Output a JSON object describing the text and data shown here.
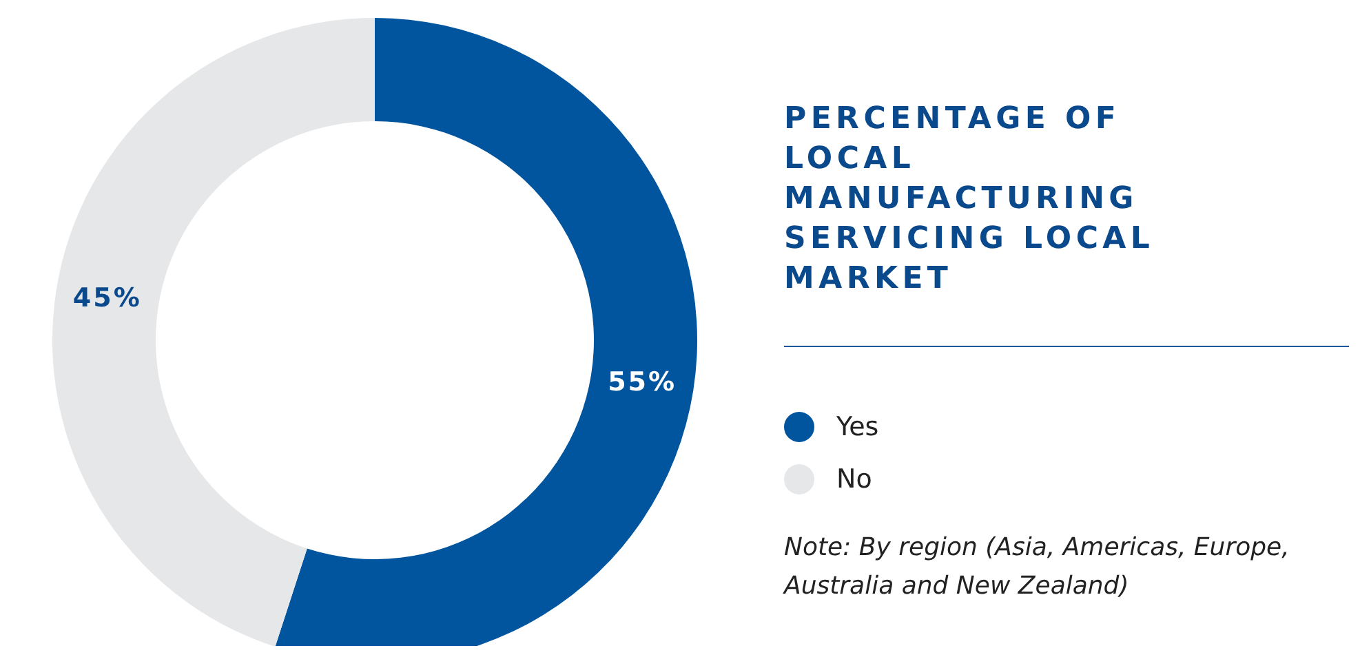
{
  "chart_data": {
    "type": "donut",
    "title": "PERCENTAGE OF LOCAL MANUFACTURING SERVICING LOCAL MARKET",
    "categories": [
      "Yes",
      "No"
    ],
    "values": [
      55,
      45
    ],
    "colors": [
      "#00559e",
      "#e6e7e9"
    ],
    "value_labels": [
      "55%",
      "45%"
    ],
    "legend": "right",
    "annotations": [
      "Note: By region (Asia, Americas, Europe, Australia and New Zealand)"
    ]
  }
}
